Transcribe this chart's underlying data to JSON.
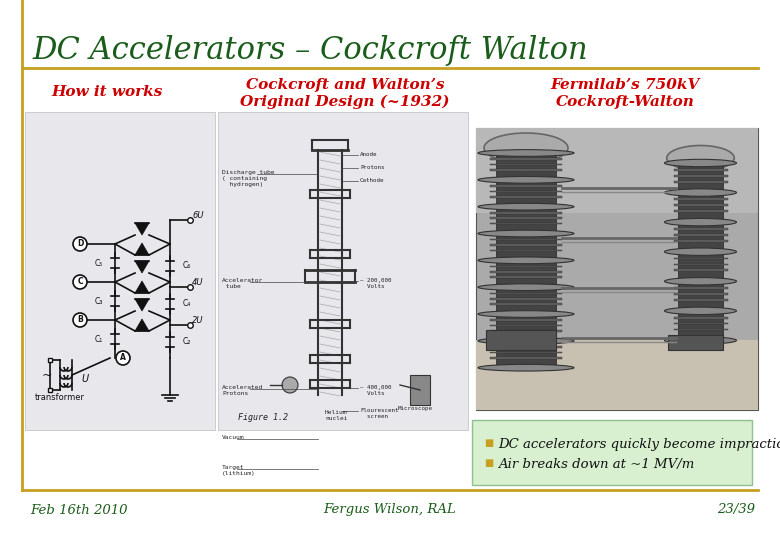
{
  "title": "DC Accelerators – Cockcroft Walton",
  "title_color": "#1a5c1a",
  "title_fontsize": 22,
  "bg_color": "#ffffff",
  "header_line_color": "#c8a020",
  "col1_label": "How it works",
  "col2_label_line1": "Cockcroft and Walton’s",
  "col2_label_line2": "Original Design (~1932)",
  "col3_label_line1": "Fermilab’s 750kV",
  "col3_label_line2": "Cockroft-Walton",
  "label_color": "#cc0000",
  "label_fontsize": 11,
  "bullet_box_color": "#d8f0d0",
  "bullet_border_color": "#90c090",
  "bullet_color": "#c8a020",
  "bullet_text_color": "#111111",
  "bullet1": "DC accelerators quickly become impractical",
  "bullet2": "Air breaks down at ~1 MV/m",
  "bullet_fontsize": 9.5,
  "footer_left": "Feb 16th 2010",
  "footer_center": "Fergus Wilson, RAL",
  "footer_right": "23/39",
  "footer_color": "#1a5c1a",
  "footer_fontsize": 9.5,
  "footer_line_color": "#c8a020",
  "circuit_bg": "#e8e8e8",
  "figure_bg": "#e8e8e8",
  "photo_bg": "#888888"
}
